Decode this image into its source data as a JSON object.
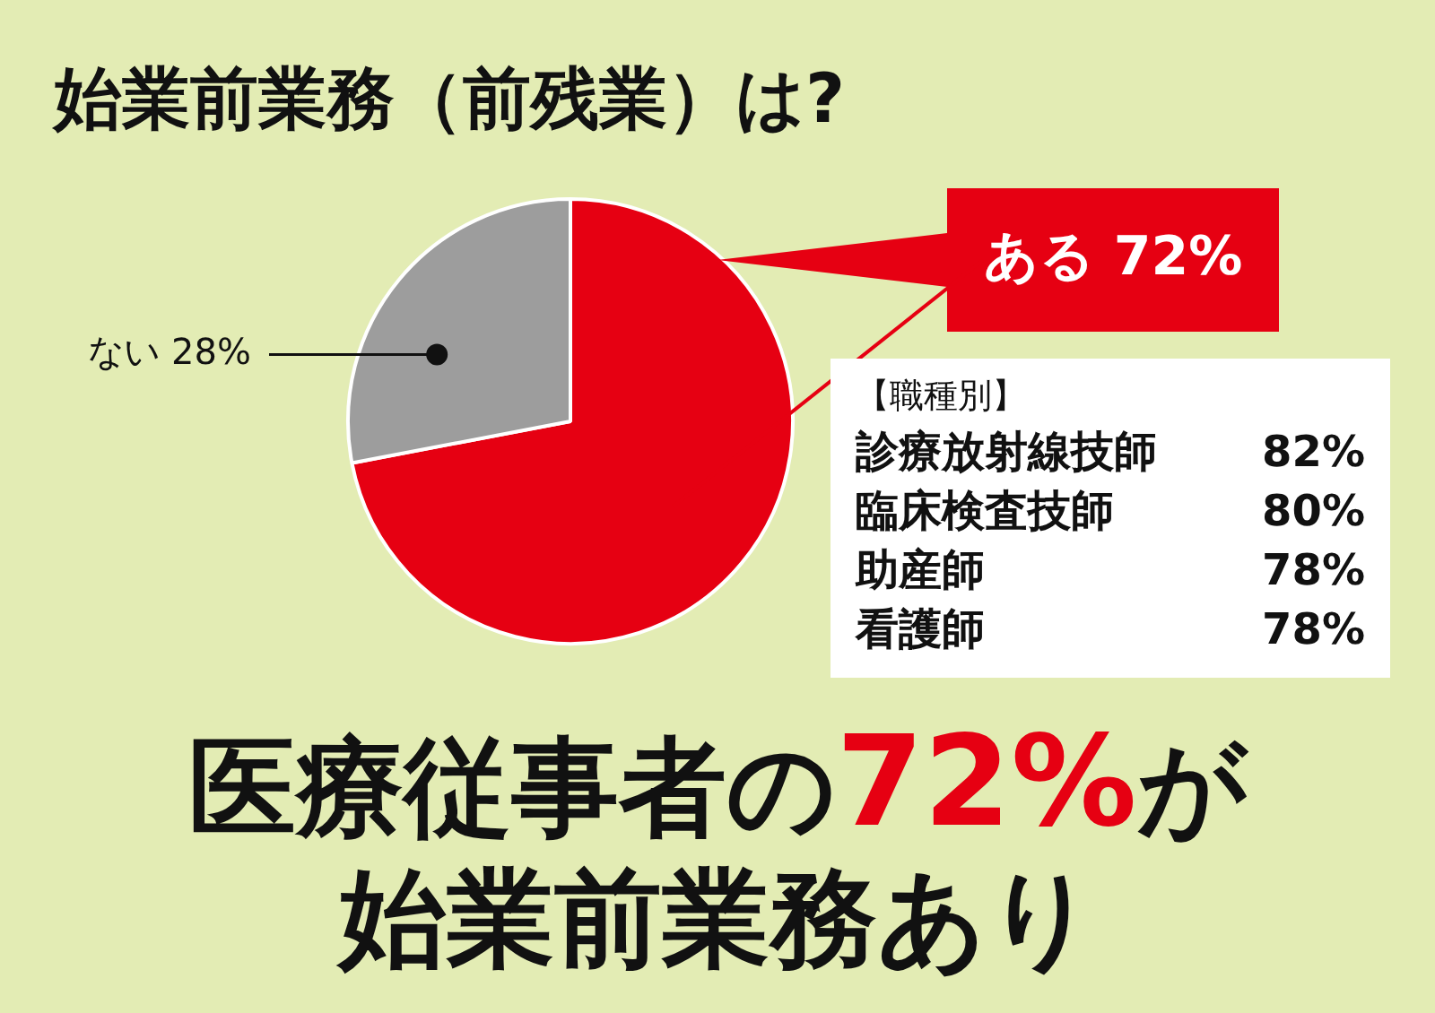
{
  "chart_data": {
    "type": "pie",
    "title": "始業前業務（前残業）は?",
    "categories": [
      "ある",
      "ない"
    ],
    "values": [
      72,
      28
    ],
    "colors": [
      "#e60012",
      "#9d9d9d"
    ],
    "value_labels": [
      "72%",
      "28%"
    ],
    "legend": false,
    "annotations": [
      "【職種別】",
      "診療放射線技師 82%",
      "臨床検査技師 80%",
      "助産師 78%",
      "看護師 78%",
      "医療従事者の72%が",
      "始業前業務あり"
    ]
  }
}
